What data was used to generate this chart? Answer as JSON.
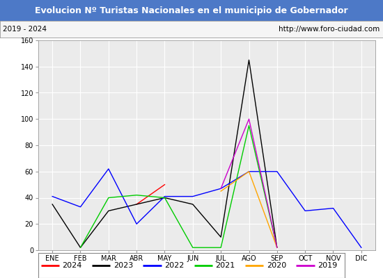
{
  "title": "Evolucion Nº Turistas Nacionales en el municipio de Gobernador",
  "subtitle_left": "2019 - 2024",
  "subtitle_right": "http://www.foro-ciudad.com",
  "title_bg_color": "#4d79c7",
  "title_text_color": "#ffffff",
  "plot_bg_color": "#ebebeb",
  "months": [
    "ENE",
    "FEB",
    "MAR",
    "ABR",
    "MAY",
    "JUN",
    "JUL",
    "AGO",
    "SEP",
    "OCT",
    "NOV",
    "DIC"
  ],
  "ylim": [
    0,
    160
  ],
  "yticks": [
    0,
    20,
    40,
    60,
    80,
    100,
    120,
    140,
    160
  ],
  "series": {
    "2024": {
      "color": "#ff0000",
      "data": [
        null,
        null,
        null,
        35,
        50,
        null,
        null,
        null,
        null,
        null,
        null,
        null
      ]
    },
    "2023": {
      "color": "#000000",
      "data": [
        35,
        2,
        30,
        35,
        40,
        35,
        10,
        145,
        2,
        null,
        null,
        null
      ]
    },
    "2022": {
      "color": "#0000ff",
      "data": [
        41,
        33,
        62,
        20,
        41,
        41,
        47,
        60,
        60,
        30,
        32,
        2
      ]
    },
    "2021": {
      "color": "#00cc00",
      "data": [
        null,
        2,
        40,
        42,
        40,
        2,
        2,
        95,
        2,
        null,
        null,
        null
      ]
    },
    "2020": {
      "color": "#ffa500",
      "data": [
        null,
        null,
        null,
        null,
        null,
        null,
        45,
        60,
        2,
        null,
        null,
        null
      ]
    },
    "2019": {
      "color": "#cc00cc",
      "data": [
        null,
        null,
        null,
        null,
        null,
        null,
        47,
        100,
        2,
        null,
        null,
        null
      ]
    }
  },
  "legend_order": [
    "2024",
    "2023",
    "2022",
    "2021",
    "2020",
    "2019"
  ]
}
